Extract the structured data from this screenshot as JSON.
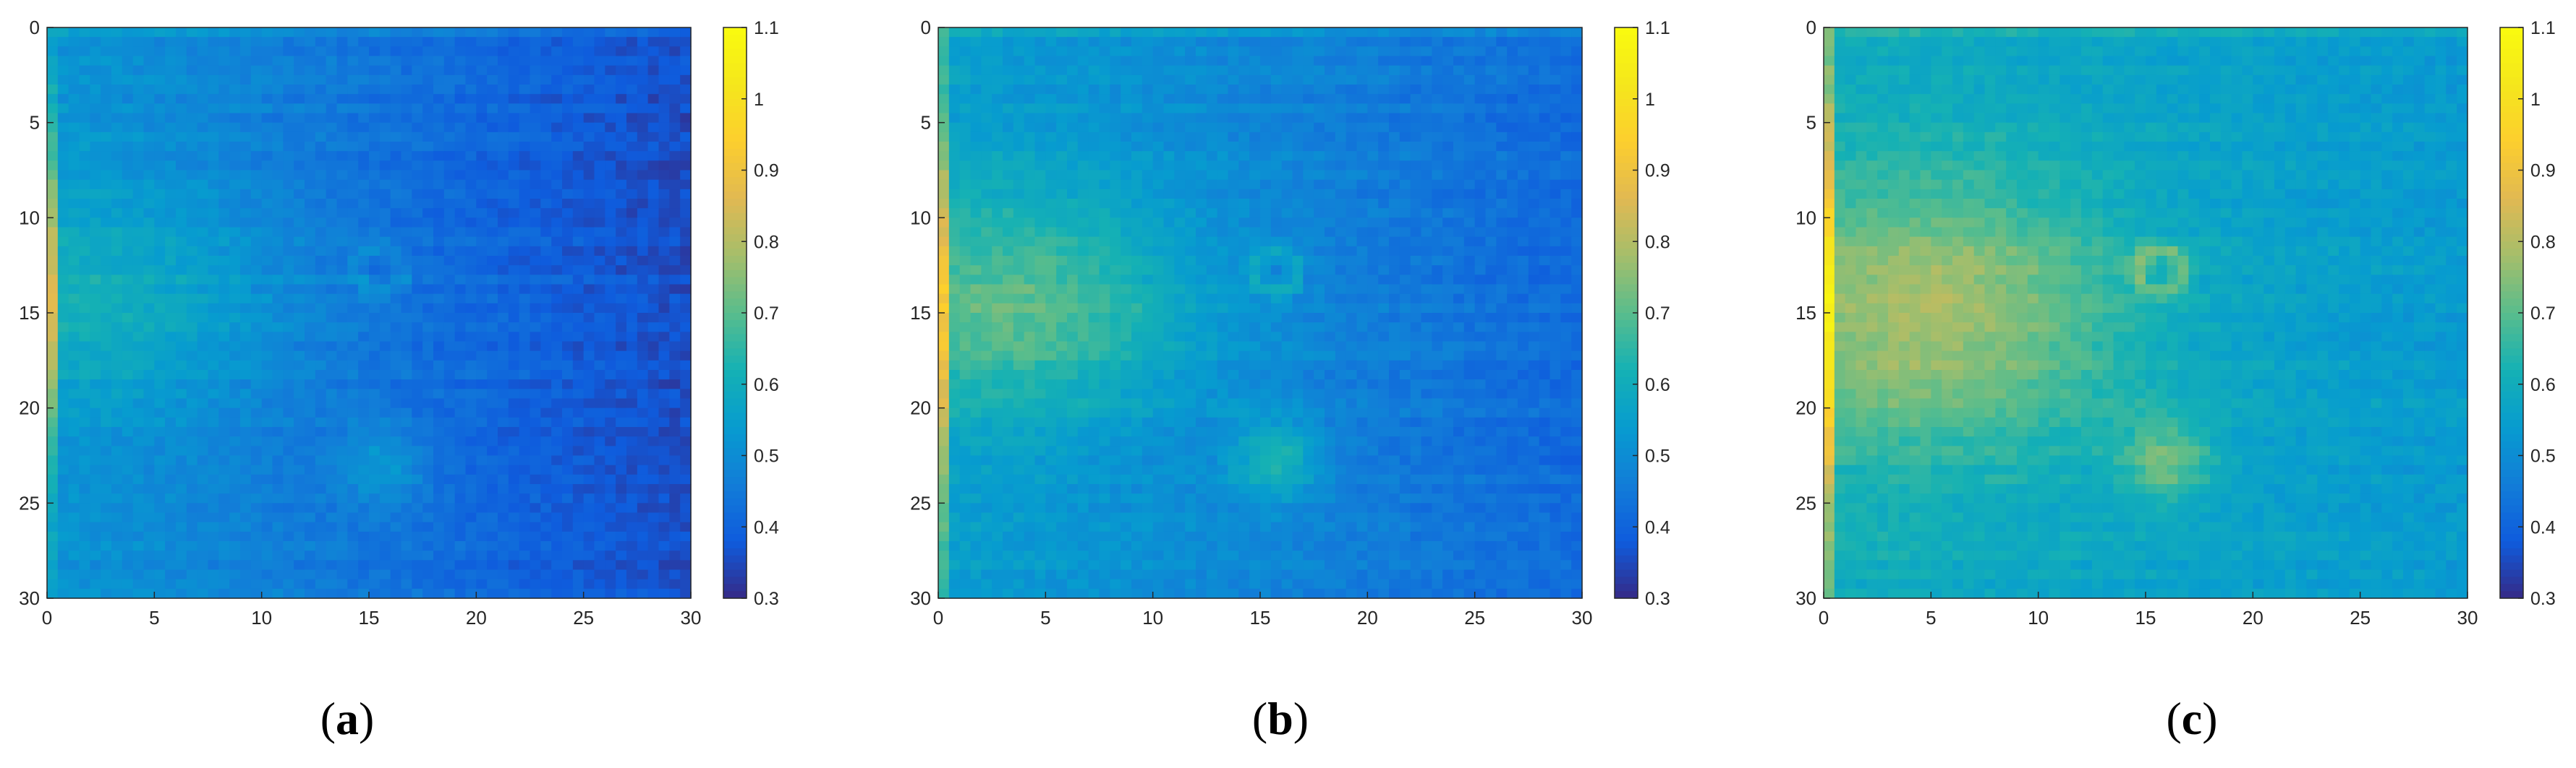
{
  "figure": {
    "panels": [
      {
        "label_open": "(",
        "label_letter": "a",
        "label_close": ")"
      },
      {
        "label_open": "(",
        "label_letter": "b",
        "label_close": ")"
      },
      {
        "label_open": "(",
        "label_letter": "c",
        "label_close": ")"
      }
    ]
  },
  "chart_data": [
    {
      "type": "heatmap",
      "title": "",
      "xlabel": "",
      "ylabel": "",
      "grid_size": [
        60,
        60
      ],
      "xlim": [
        0,
        30
      ],
      "ylim": [
        30,
        0
      ],
      "x_ticks": [
        0,
        5,
        10,
        15,
        20,
        25,
        30
      ],
      "y_ticks": [
        0,
        5,
        10,
        15,
        20,
        25,
        30
      ],
      "colorbar": {
        "range": [
          0.3,
          1.1
        ],
        "ticks": [
          0.3,
          0.4,
          0.5,
          0.6,
          0.7,
          0.8,
          0.9,
          1,
          1.1
        ],
        "colormap": "parula"
      },
      "field": {
        "base": 0.52,
        "x_slope": -0.0055,
        "blob": {
          "cx": 3,
          "cy": 14,
          "rx": 8,
          "ry": 6,
          "amp": 0.1
        },
        "hotspots": [
          {
            "x": 15.7,
            "y": 23,
            "r": 1.5,
            "amp": 0.1
          }
        ],
        "rings": [
          {
            "x": 15.5,
            "y": 12.8,
            "r": 1.1,
            "amp": 0.06
          }
        ],
        "left_edge": {
          "x_max": 0.7,
          "bottom": 0.55,
          "peak": 0.85,
          "peak_y": 14,
          "spread": 8
        }
      }
    },
    {
      "type": "heatmap",
      "title": "",
      "xlabel": "",
      "ylabel": "",
      "grid_size": [
        60,
        60
      ],
      "xlim": [
        0,
        30
      ],
      "ylim": [
        30,
        0
      ],
      "x_ticks": [
        0,
        5,
        10,
        15,
        20,
        25,
        30
      ],
      "y_ticks": [
        0,
        5,
        10,
        15,
        20,
        25,
        30
      ],
      "colorbar": {
        "range": [
          0.3,
          1.1
        ],
        "ticks": [
          0.3,
          0.4,
          0.5,
          0.6,
          0.7,
          0.8,
          0.9,
          1,
          1.1
        ],
        "colormap": "parula"
      },
      "field": {
        "base": 0.55,
        "x_slope": -0.0045,
        "blob": {
          "cx": 4,
          "cy": 14.5,
          "rx": 8,
          "ry": 6,
          "amp": 0.17
        },
        "hotspots": [
          {
            "x": 15.8,
            "y": 22.7,
            "r": 1.5,
            "amp": 0.15
          }
        ],
        "rings": [
          {
            "x": 15.7,
            "y": 12.8,
            "r": 1.1,
            "amp": 0.09
          }
        ],
        "left_edge": {
          "x_max": 0.7,
          "bottom": 0.62,
          "peak": 0.92,
          "peak_y": 15,
          "spread": 9
        }
      }
    },
    {
      "type": "heatmap",
      "title": "",
      "xlabel": "",
      "ylabel": "",
      "grid_size": [
        60,
        60
      ],
      "xlim": [
        0,
        30
      ],
      "ylim": [
        30,
        0
      ],
      "x_ticks": [
        0,
        5,
        10,
        15,
        20,
        25,
        30
      ],
      "y_ticks": [
        0,
        5,
        10,
        15,
        20,
        25,
        30
      ],
      "colorbar": {
        "range": [
          0.3,
          1.1
        ],
        "ticks": [
          0.3,
          0.4,
          0.5,
          0.6,
          0.7,
          0.8,
          0.9,
          1,
          1.1
        ],
        "colormap": "parula"
      },
      "field": {
        "base": 0.6,
        "x_slope": -0.002,
        "blob": {
          "cx": 5,
          "cy": 15,
          "rx": 9,
          "ry": 7,
          "amp": 0.2
        },
        "hotspots": [
          {
            "x": 16,
            "y": 22.8,
            "r": 1.5,
            "amp": 0.15
          }
        ],
        "rings": [
          {
            "x": 15.7,
            "y": 12.8,
            "r": 1.1,
            "amp": 0.12
          }
        ],
        "left_edge": {
          "x_max": 0.7,
          "bottom": 0.7,
          "peak": 1.05,
          "peak_y": 15,
          "spread": 9
        }
      }
    }
  ]
}
